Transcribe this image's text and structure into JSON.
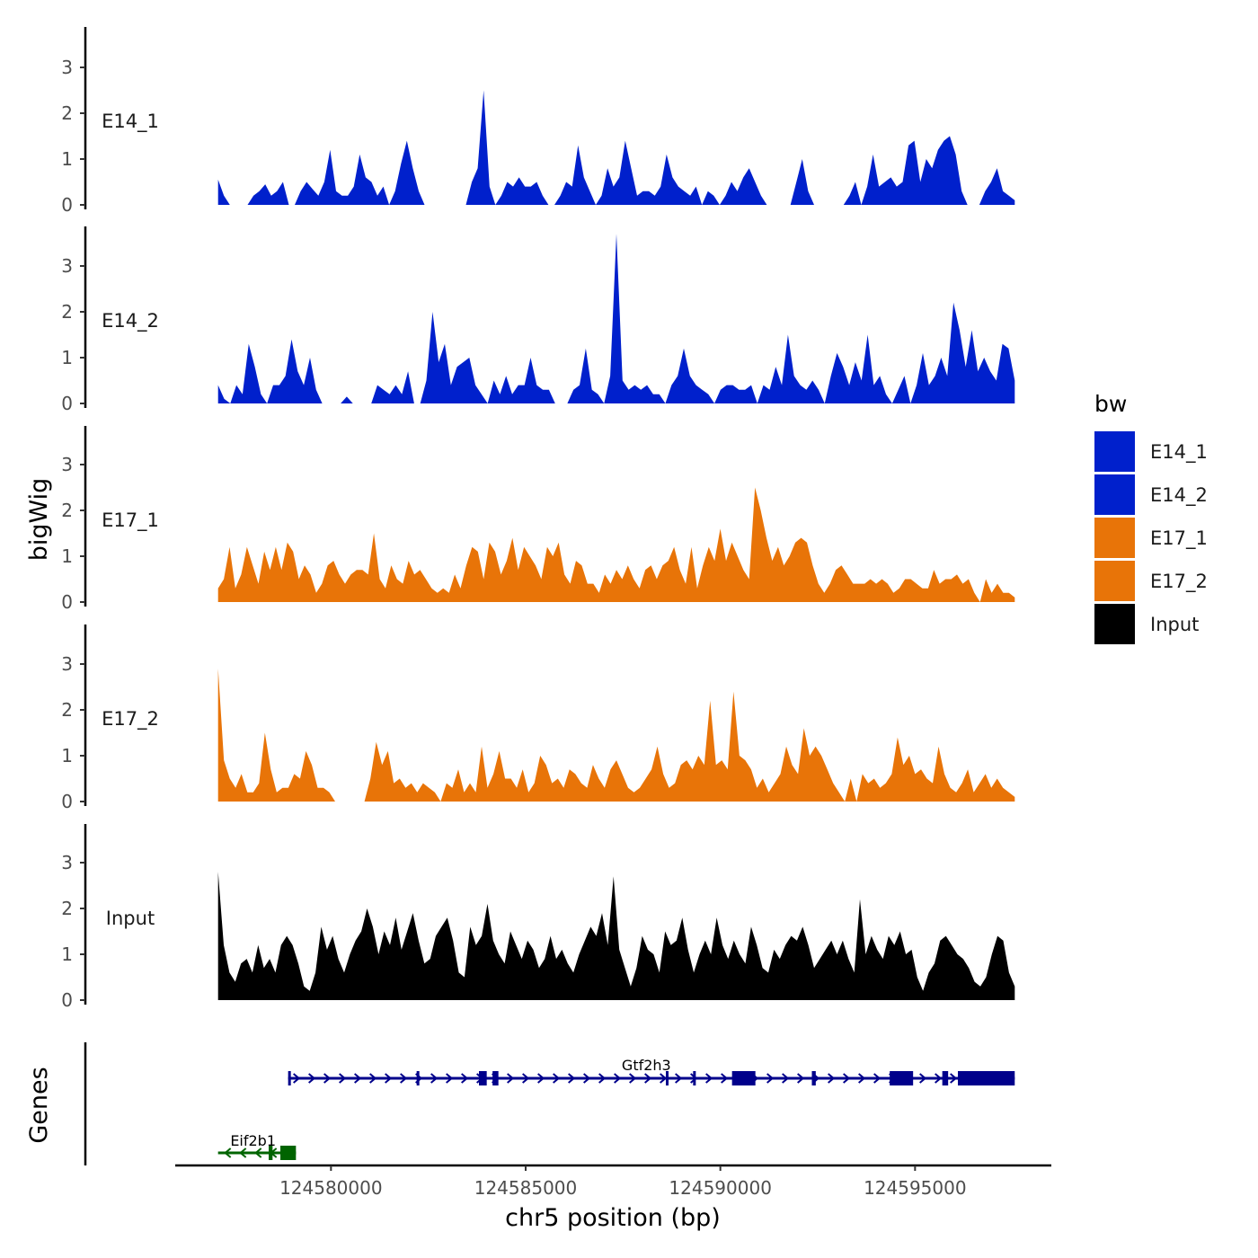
{
  "chart_data": {
    "type": "area",
    "ylabel": "bigWig",
    "xlabel": "chr5 position (bp)",
    "xlim": [
      124576000,
      124598500
    ],
    "ylim": [
      0,
      3.9
    ],
    "ytick_values": [
      0,
      1,
      2,
      3
    ],
    "ytick_labels": [
      "0",
      "1",
      "2",
      "3"
    ],
    "xtick_values": [
      124580000,
      124585000,
      124590000,
      124595000
    ],
    "xtick_labels": [
      "124580000",
      "124585000",
      "124590000",
      "124595000"
    ],
    "x_start": 124577100,
    "x_end": 124597560,
    "grid": false,
    "legend": {
      "title": "bw",
      "placement": "right",
      "entries": [
        {
          "label": "E14_1",
          "color": "#0020CC"
        },
        {
          "label": "E14_2",
          "color": "#0020CC"
        },
        {
          "label": "E17_1",
          "color": "#E87408"
        },
        {
          "label": "E17_2",
          "color": "#E87408"
        },
        {
          "label": "Input",
          "color": "#000000"
        }
      ]
    },
    "series": [
      {
        "name": "E14_1",
        "color": "#0020CC",
        "values": [
          0.55,
          0.2,
          0,
          0,
          0,
          0,
          0.2,
          0.3,
          0.45,
          0.2,
          0.3,
          0.5,
          0,
          0,
          0.3,
          0.5,
          0.35,
          0.2,
          0.5,
          1.2,
          0.3,
          0.2,
          0.2,
          0.4,
          1.1,
          0.6,
          0.5,
          0.2,
          0.4,
          0,
          0.3,
          0.9,
          1.4,
          0.8,
          0.3,
          0,
          0,
          0,
          0,
          0,
          0,
          0,
          0,
          0.5,
          0.8,
          2.5,
          0.4,
          0,
          0.2,
          0.5,
          0.4,
          0.6,
          0.4,
          0.4,
          0.5,
          0.2,
          0,
          0,
          0.2,
          0.5,
          0.4,
          1.3,
          0.6,
          0.3,
          0,
          0.2,
          0.8,
          0.4,
          0.6,
          1.4,
          0.8,
          0.2,
          0.3,
          0.3,
          0.2,
          0.4,
          1.1,
          0.6,
          0.4,
          0.3,
          0.2,
          0.4,
          0,
          0.3,
          0.2,
          0,
          0.2,
          0.5,
          0.3,
          0.6,
          0.8,
          0.5,
          0.2,
          0,
          0,
          0,
          0,
          0,
          0.5,
          1.0,
          0.3,
          0,
          0,
          0,
          0,
          0,
          0,
          0.2,
          0.5,
          0,
          0.4,
          1.1,
          0.4,
          0.5,
          0.6,
          0.4,
          0.5,
          1.3,
          1.4,
          0.5,
          1.0,
          0.8,
          1.2,
          1.4,
          1.5,
          1.1,
          0.3,
          0,
          0,
          0,
          0.3,
          0.5,
          0.8,
          0.3,
          0.2,
          0.1
        ]
      },
      {
        "name": "E14_2",
        "color": "#0020CC",
        "values": [
          0.4,
          0.1,
          0,
          0.4,
          0.2,
          1.3,
          0.8,
          0.2,
          0,
          0.4,
          0.4,
          0.6,
          1.4,
          0.7,
          0.4,
          1.0,
          0.3,
          0,
          0,
          0,
          0,
          0.15,
          0,
          0,
          0,
          0,
          0.4,
          0.3,
          0.2,
          0.4,
          0.2,
          0.7,
          0,
          0,
          0.5,
          2.0,
          0.9,
          1.3,
          0.4,
          0.8,
          0.9,
          1.0,
          0.4,
          0.2,
          0,
          0.5,
          0.2,
          0.6,
          0.2,
          0.4,
          0.4,
          1.0,
          0.4,
          0.3,
          0.3,
          0,
          0,
          0,
          0.3,
          0.4,
          1.2,
          0.3,
          0.2,
          0,
          0.6,
          3.7,
          0.5,
          0.3,
          0.4,
          0.3,
          0.4,
          0.2,
          0.2,
          0,
          0.4,
          0.6,
          1.2,
          0.6,
          0.4,
          0.3,
          0.2,
          0,
          0.3,
          0.4,
          0.4,
          0.3,
          0.3,
          0.4,
          0,
          0.4,
          0.3,
          0.8,
          0.4,
          1.5,
          0.6,
          0.4,
          0.3,
          0.5,
          0.3,
          0,
          0.6,
          1.1,
          0.8,
          0.4,
          0.9,
          0.5,
          1.5,
          0.4,
          0.6,
          0.2,
          0,
          0.3,
          0.6,
          0,
          0.4,
          1.1,
          0.4,
          0.6,
          1.0,
          0.6,
          2.2,
          1.6,
          0.8,
          1.6,
          0.7,
          1.0,
          0.7,
          0.5,
          1.3,
          1.2,
          0.5
        ]
      },
      {
        "name": "E17_1",
        "color": "#E87408",
        "values": [
          0.3,
          0.5,
          1.2,
          0.3,
          0.6,
          1.2,
          0.8,
          0.4,
          1.1,
          0.7,
          1.2,
          0.7,
          1.3,
          1.1,
          0.5,
          0.8,
          0.6,
          0.2,
          0.4,
          0.8,
          0.9,
          0.6,
          0.4,
          0.6,
          0.7,
          0.7,
          0.6,
          1.5,
          0.5,
          0.3,
          0.8,
          0.5,
          0.4,
          0.9,
          0.6,
          0.7,
          0.5,
          0.3,
          0.2,
          0.3,
          0.2,
          0.6,
          0.3,
          0.8,
          1.2,
          1.1,
          0.5,
          1.3,
          1.1,
          0.6,
          0.9,
          1.4,
          0.7,
          1.2,
          1.0,
          0.8,
          0.5,
          1.2,
          1.0,
          1.3,
          0.6,
          0.4,
          0.9,
          0.8,
          0.4,
          0.4,
          0.2,
          0.6,
          0.4,
          0.7,
          0.5,
          0.8,
          0.5,
          0.3,
          0.7,
          0.8,
          0.5,
          0.8,
          0.9,
          1.2,
          0.7,
          0.4,
          1.2,
          0.3,
          0.8,
          1.2,
          0.9,
          1.6,
          0.9,
          1.3,
          1.0,
          0.7,
          0.5,
          2.5,
          2.0,
          1.4,
          0.9,
          1.2,
          0.8,
          1.0,
          1.3,
          1.4,
          1.3,
          0.8,
          0.4,
          0.2,
          0.4,
          0.7,
          0.8,
          0.6,
          0.4,
          0.4,
          0.4,
          0.5,
          0.4,
          0.5,
          0.4,
          0.2,
          0.3,
          0.5,
          0.5,
          0.4,
          0.3,
          0.3,
          0.7,
          0.4,
          0.5,
          0.5,
          0.6,
          0.4,
          0.5,
          0.2,
          0,
          0.5,
          0.2,
          0.4,
          0.2,
          0.2,
          0.1
        ]
      },
      {
        "name": "E17_2",
        "color": "#E87408",
        "values": [
          2.9,
          0.9,
          0.5,
          0.3,
          0.6,
          0.2,
          0.2,
          0.4,
          1.5,
          0.7,
          0.2,
          0.3,
          0.3,
          0.6,
          0.5,
          1.1,
          0.8,
          0.3,
          0.3,
          0.2,
          0,
          0,
          0,
          0,
          0,
          0,
          0.5,
          1.3,
          0.8,
          1.1,
          0.4,
          0.5,
          0.3,
          0.4,
          0.2,
          0.4,
          0.3,
          0.2,
          0,
          0.4,
          0.3,
          0.7,
          0.2,
          0.4,
          0.2,
          1.2,
          0.3,
          0.6,
          1.1,
          0.5,
          0.5,
          0.3,
          0.7,
          0.2,
          0.4,
          1.0,
          0.8,
          0.4,
          0.5,
          0.3,
          0.7,
          0.6,
          0.4,
          0.3,
          0.8,
          0.5,
          0.3,
          0.7,
          0.9,
          0.6,
          0.3,
          0.2,
          0.3,
          0.5,
          0.7,
          1.2,
          0.6,
          0.3,
          0.4,
          0.8,
          0.9,
          0.7,
          1.0,
          0.8,
          2.2,
          0.8,
          0.9,
          0.7,
          2.4,
          1.0,
          0.9,
          0.7,
          0.3,
          0.5,
          0.2,
          0.4,
          0.6,
          1.2,
          0.8,
          0.6,
          1.6,
          1.0,
          1.2,
          1.0,
          0.7,
          0.4,
          0.2,
          0,
          0.5,
          0,
          0.6,
          0.4,
          0.5,
          0.3,
          0.4,
          0.6,
          1.4,
          0.8,
          1.0,
          0.6,
          0.7,
          0.5,
          0.4,
          1.2,
          0.6,
          0.3,
          0.2,
          0.4,
          0.7,
          0.2,
          0.4,
          0.6,
          0.3,
          0.5,
          0.3,
          0.2,
          0.1
        ]
      },
      {
        "name": "Input",
        "color": "#000000",
        "values": [
          2.8,
          1.2,
          0.6,
          0.4,
          0.8,
          0.9,
          0.6,
          1.2,
          0.7,
          0.9,
          0.6,
          1.2,
          1.4,
          1.2,
          0.8,
          0.3,
          0.2,
          0.6,
          1.6,
          1.1,
          1.4,
          0.9,
          0.6,
          1.0,
          1.3,
          1.5,
          2.0,
          1.6,
          1.0,
          1.5,
          1.2,
          1.8,
          1.1,
          1.5,
          1.9,
          1.3,
          0.8,
          0.9,
          1.4,
          1.6,
          1.8,
          1.3,
          0.6,
          0.5,
          1.6,
          1.2,
          1.4,
          2.1,
          1.3,
          1.0,
          0.8,
          1.5,
          1.2,
          0.9,
          1.3,
          1.1,
          0.7,
          0.9,
          1.4,
          0.9,
          1.1,
          0.8,
          0.6,
          1.0,
          1.3,
          1.6,
          1.4,
          1.9,
          1.2,
          2.7,
          1.1,
          0.7,
          0.3,
          0.7,
          1.4,
          1.1,
          1.0,
          0.6,
          1.5,
          1.2,
          1.3,
          1.8,
          1.1,
          0.6,
          1.0,
          1.3,
          1.0,
          1.8,
          1.2,
          0.9,
          1.3,
          1.0,
          0.8,
          1.6,
          1.2,
          0.7,
          0.6,
          1.1,
          0.9,
          1.2,
          1.4,
          1.3,
          1.6,
          1.2,
          0.7,
          0.9,
          1.1,
          1.3,
          1.0,
          1.3,
          0.9,
          0.6,
          2.2,
          1.0,
          1.4,
          1.1,
          0.9,
          1.4,
          1.2,
          1.5,
          1.0,
          1.1,
          0.5,
          0.2,
          0.6,
          0.8,
          1.3,
          1.4,
          1.2,
          1.0,
          0.9,
          0.7,
          0.4,
          0.3,
          0.5,
          1.0,
          1.4,
          1.3,
          0.6,
          0.3
        ]
      }
    ],
    "genes_track": {
      "label": "Genes",
      "genes": [
        {
          "name": "Gtf2h3",
          "strand": "+",
          "start": 124578900,
          "end": 124597560,
          "color": "#00008B",
          "exons": [
            [
              124578900,
              124578960
            ],
            [
              124582200,
              124582260
            ],
            [
              124583800,
              124584000
            ],
            [
              124584150,
              124584300
            ],
            [
              124588600,
              124588650
            ],
            [
              124589300,
              124589360
            ],
            [
              124590300,
              124590900
            ],
            [
              124592350,
              124592450
            ],
            [
              124594350,
              124594950
            ],
            [
              124595700,
              124595850
            ],
            [
              124596100,
              124597560
            ]
          ]
        },
        {
          "name": "Eif2b1",
          "strand": "-",
          "start": 124577100,
          "end": 124579100,
          "color": "#006400",
          "exons": [
            [
              124578400,
              124578500
            ],
            [
              124578700,
              124579100
            ]
          ]
        }
      ]
    }
  }
}
